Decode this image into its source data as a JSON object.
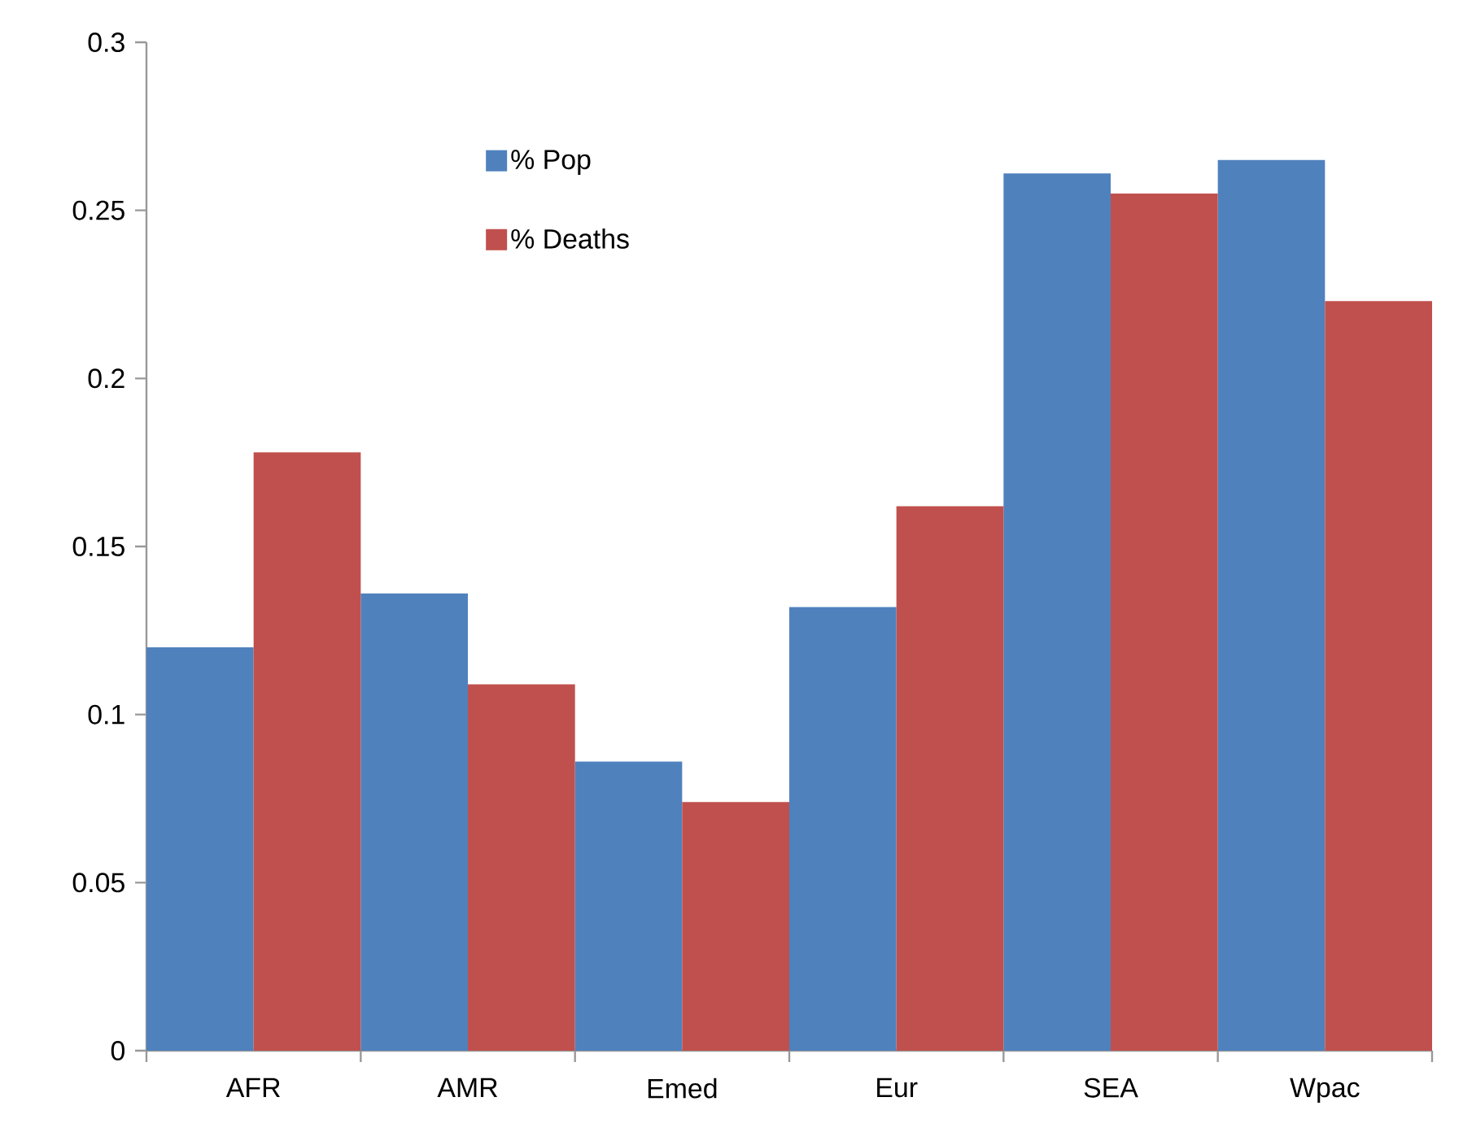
{
  "chart_data": {
    "type": "bar",
    "categories": [
      "AFR",
      "AMR",
      "Emed",
      "Eur",
      "SEA",
      "Wpac"
    ],
    "series": [
      {
        "name": "% Pop",
        "color": "#4f81bd",
        "values": [
          0.12,
          0.136,
          0.086,
          0.132,
          0.261,
          0.265
        ]
      },
      {
        "name": "% Deaths",
        "color": "#c0504d",
        "values": [
          0.178,
          0.109,
          0.074,
          0.162,
          0.255,
          0.223
        ]
      }
    ],
    "ylim": [
      0,
      0.3
    ],
    "yticks": [
      0,
      0.05,
      0.1,
      0.15,
      0.2,
      0.25,
      0.3
    ],
    "legend": "top",
    "grid": false
  }
}
